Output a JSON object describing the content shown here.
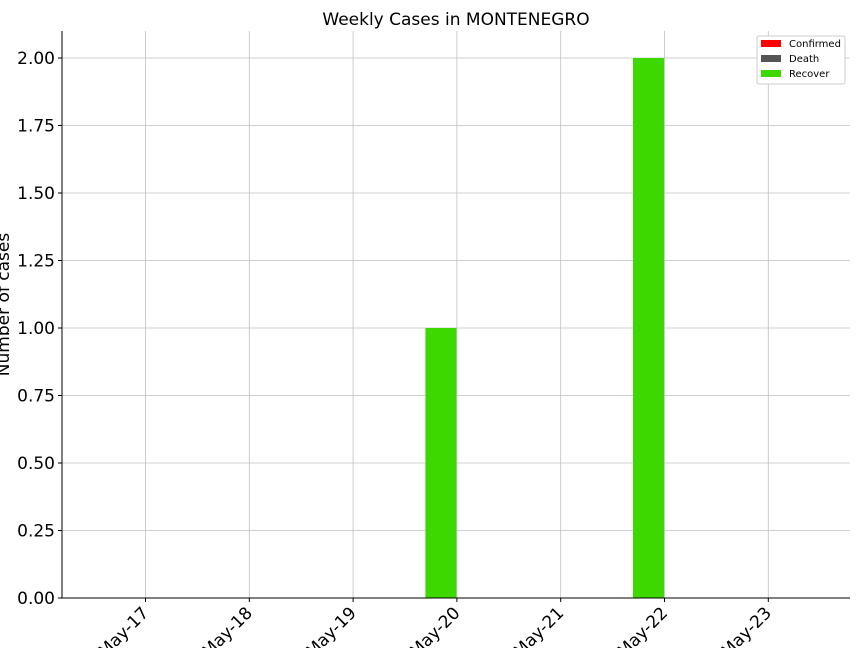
{
  "chart_data": {
    "type": "bar",
    "title": "Weekly Cases in MONTENEGRO",
    "ylabel": "Number of cases",
    "xlabel": "",
    "ylim": [
      0,
      2.1
    ],
    "y_ticks": [
      "0.00",
      "0.25",
      "0.50",
      "0.75",
      "1.00",
      "1.25",
      "1.50",
      "1.75",
      "2.00"
    ],
    "categories": [
      "May-17",
      "May-18",
      "May-19",
      "May-20",
      "May-21",
      "May-22",
      "May-23"
    ],
    "series": [
      {
        "name": "Confirmed",
        "color": "#ff0000",
        "values": [
          0,
          0,
          0,
          0,
          0,
          0,
          0
        ]
      },
      {
        "name": "Death",
        "color": "#555555",
        "values": [
          0,
          0,
          0,
          0,
          0,
          0,
          0
        ]
      },
      {
        "name": "Recover",
        "color": "#3dd800",
        "values": [
          0,
          0,
          0,
          1,
          0,
          2,
          0
        ]
      }
    ],
    "grid": true,
    "legend_position": "top-right"
  }
}
